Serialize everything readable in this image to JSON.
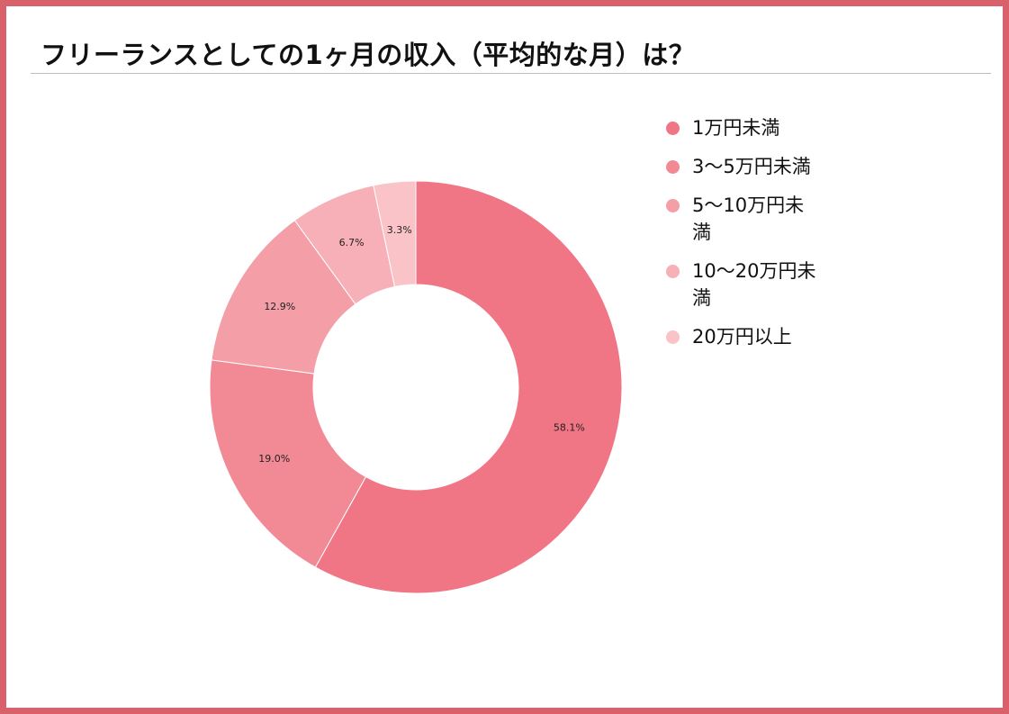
{
  "title": "フリーランスとしての1ヶ月の収入（平均的な月）は？",
  "colors": {
    "frame": "#d9616b",
    "rule": "#bdbdbd"
  },
  "chart_data": {
    "type": "pie",
    "donut": true,
    "title": "フリーランスとしての1ヶ月の収入（平均的な月）は？",
    "legend_position": "right",
    "categories": [
      "1万円未満",
      "3〜5万円未満",
      "5〜10万円未満",
      "10〜20万円未満",
      "20万円以上"
    ],
    "values": [
      58.1,
      19.0,
      12.9,
      6.7,
      3.3
    ],
    "data_labels": [
      "58.1%",
      "19.0%",
      "12.9%",
      "6.7%",
      "3.3%"
    ],
    "colors": [
      "#f07585",
      "#f28a96",
      "#f49ea7",
      "#f7b0b7",
      "#f9c3c8"
    ]
  }
}
